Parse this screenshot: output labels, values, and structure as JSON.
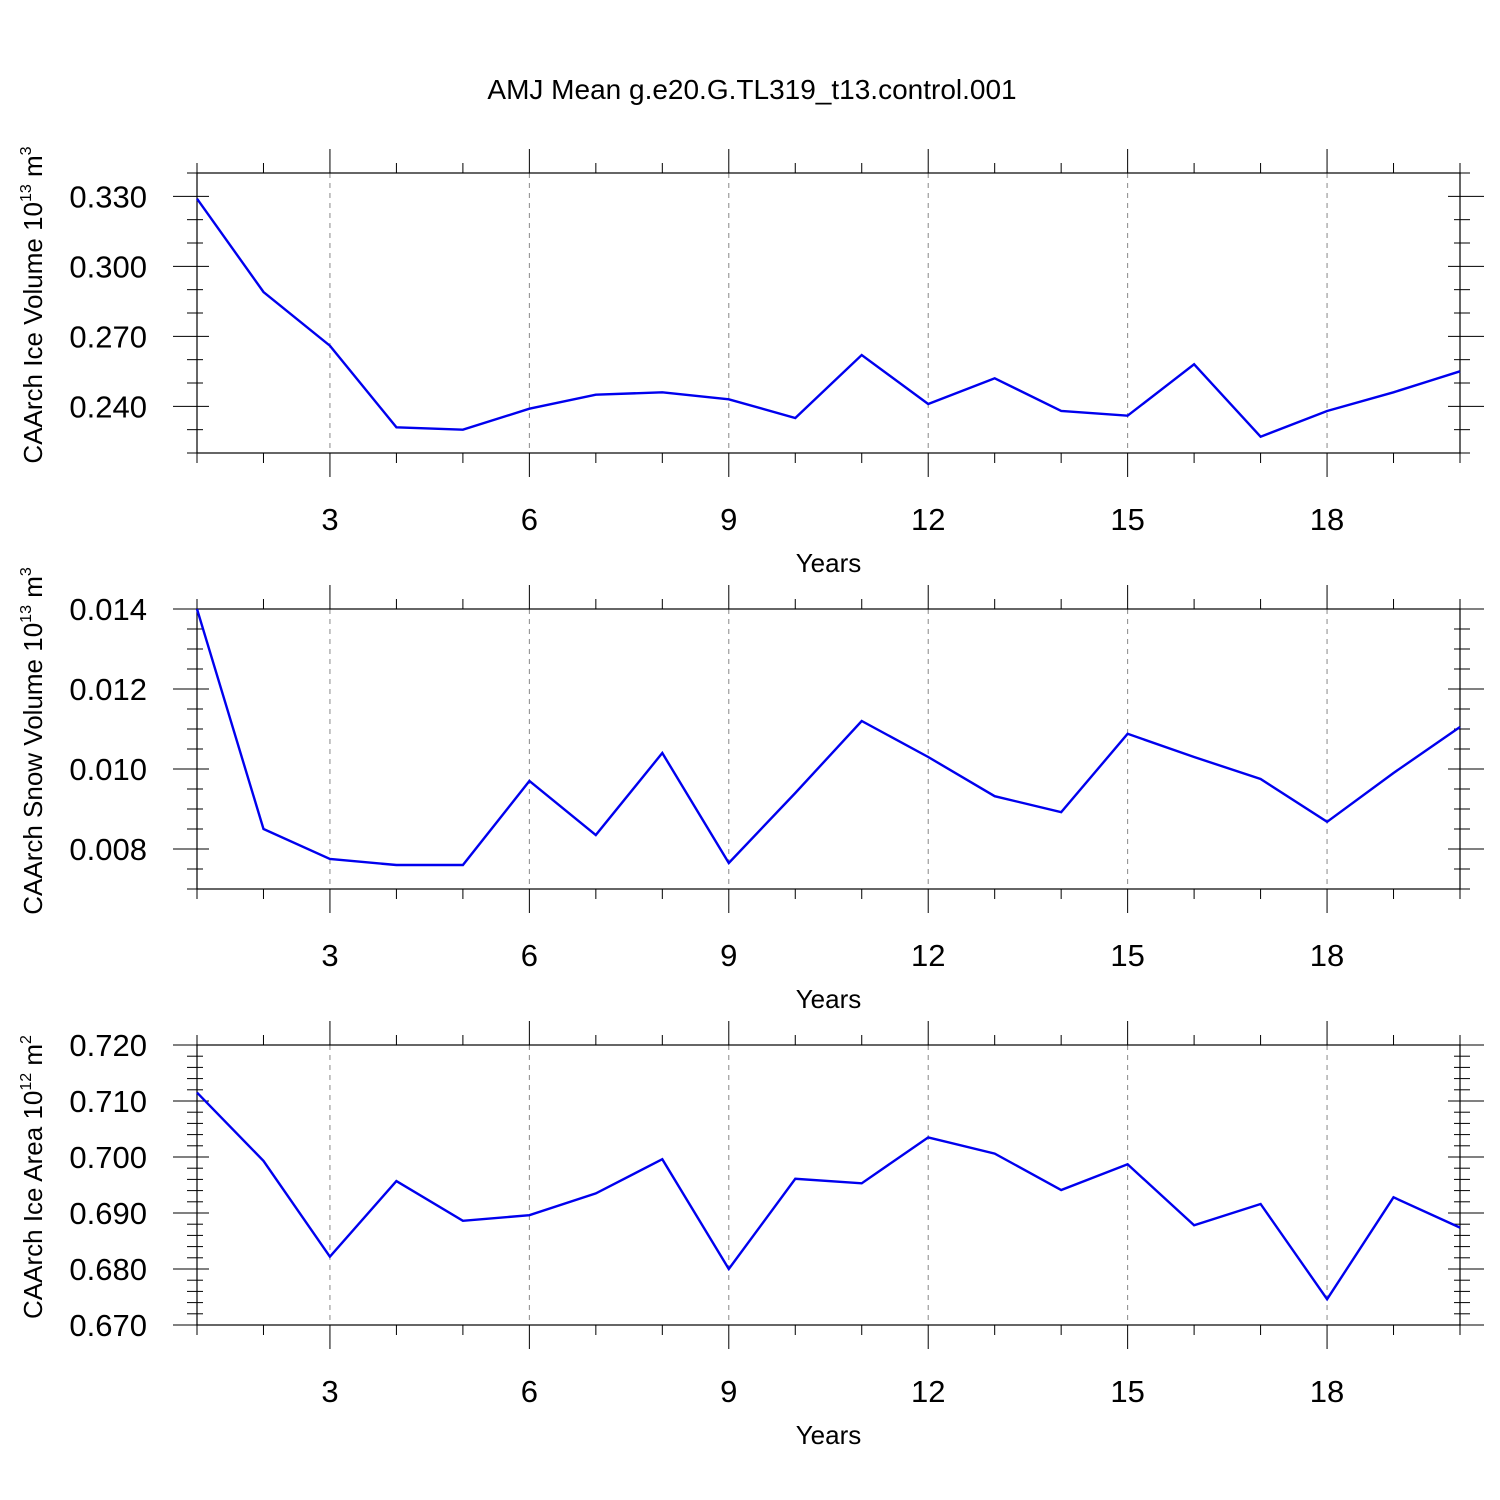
{
  "figure_title": "AMJ Mean g.e20.G.TL319_t13.control.001",
  "colors": {
    "line": "#0000ee",
    "axis": "#000000",
    "grid": "#888888"
  },
  "chart_data": [
    {
      "type": "line",
      "title": "",
      "xlabel": "Years",
      "ylabel_text": "CAArch Ice Volume 10",
      "ylabel_exp": "13",
      "ylabel_unit": " m",
      "ylabel_unit_exp": "3",
      "xlim": [
        1,
        20
      ],
      "ylim": [
        0.22,
        0.34
      ],
      "x_ticks": [
        3,
        6,
        9,
        12,
        15,
        18
      ],
      "x_tick_labels": [
        "3",
        "6",
        "9",
        "12",
        "15",
        "18"
      ],
      "y_ticks": [
        0.24,
        0.27,
        0.3,
        0.33
      ],
      "y_tick_labels": [
        "0.240",
        "0.270",
        "0.300",
        "0.330"
      ],
      "y_minor_step": 0.01,
      "grid": "vertical dashed at major x ticks",
      "series": [
        {
          "x": [
            1,
            2,
            3,
            4,
            5,
            6,
            7,
            8,
            9,
            10,
            11,
            12,
            13,
            14,
            15,
            16,
            17,
            18,
            19,
            20
          ],
          "values": [
            0.329,
            0.289,
            0.266,
            0.231,
            0.23,
            0.239,
            0.245,
            0.246,
            0.243,
            0.235,
            0.262,
            0.241,
            0.252,
            0.238,
            0.236,
            0.258,
            0.227,
            0.238,
            0.246,
            0.255
          ]
        }
      ]
    },
    {
      "type": "line",
      "title": "",
      "xlabel": "Years",
      "ylabel_text": "CAArch Snow Volume 10",
      "ylabel_exp": "13",
      "ylabel_unit": " m",
      "ylabel_unit_exp": "3",
      "xlim": [
        1,
        20
      ],
      "ylim": [
        0.007,
        0.014
      ],
      "x_ticks": [
        3,
        6,
        9,
        12,
        15,
        18
      ],
      "x_tick_labels": [
        "3",
        "6",
        "9",
        "12",
        "15",
        "18"
      ],
      "y_ticks": [
        0.008,
        0.01,
        0.012,
        0.014
      ],
      "y_tick_labels": [
        "0.008",
        "0.010",
        "0.012",
        "0.014"
      ],
      "y_minor_step": 0.0005,
      "grid": "vertical dashed at major x ticks",
      "series": [
        {
          "x": [
            1,
            2,
            3,
            4,
            5,
            6,
            7,
            8,
            9,
            10,
            11,
            12,
            13,
            14,
            15,
            16,
            17,
            18,
            19,
            20
          ],
          "values": [
            0.014,
            0.0085,
            0.00775,
            0.0076,
            0.0076,
            0.0097,
            0.00835,
            0.0104,
            0.00765,
            0.0094,
            0.0112,
            0.0103,
            0.00932,
            0.00892,
            0.01088,
            0.0103,
            0.00975,
            0.00868,
            0.0099,
            0.01105
          ]
        }
      ]
    },
    {
      "type": "line",
      "title": "",
      "xlabel": "Years",
      "ylabel_text": "CAArch Ice Area 10",
      "ylabel_exp": "12",
      "ylabel_unit": " m",
      "ylabel_unit_exp": "2",
      "xlim": [
        1,
        20
      ],
      "ylim": [
        0.67,
        0.72
      ],
      "x_ticks": [
        3,
        6,
        9,
        12,
        15,
        18
      ],
      "x_tick_labels": [
        "3",
        "6",
        "9",
        "12",
        "15",
        "18"
      ],
      "y_ticks": [
        0.67,
        0.68,
        0.69,
        0.7,
        0.71,
        0.72
      ],
      "y_tick_labels": [
        "0.670",
        "0.680",
        "0.690",
        "0.700",
        "0.710",
        "0.720"
      ],
      "y_minor_step": 0.002,
      "grid": "vertical dashed at major x ticks",
      "series": [
        {
          "x": [
            1,
            2,
            3,
            4,
            5,
            6,
            7,
            8,
            9,
            10,
            11,
            12,
            13,
            14,
            15,
            16,
            17,
            18,
            19,
            20
          ],
          "values": [
            0.7115,
            0.6993,
            0.6822,
            0.6957,
            0.6886,
            0.6896,
            0.6935,
            0.6996,
            0.68,
            0.6961,
            0.6953,
            0.7035,
            0.7006,
            0.6941,
            0.6987,
            0.6878,
            0.6916,
            0.6746,
            0.6928,
            0.6874
          ]
        }
      ]
    }
  ]
}
